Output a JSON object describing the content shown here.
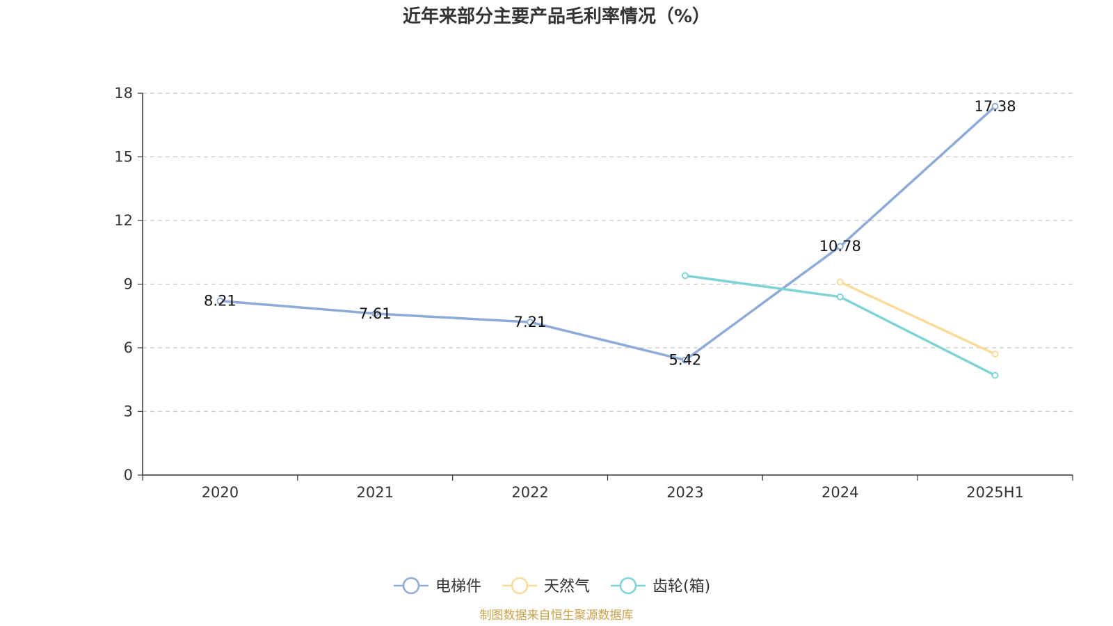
{
  "chart_data": {
    "type": "line",
    "title": "近年来部分主要产品毛利率情况（%）",
    "categories": [
      "2020",
      "2021",
      "2022",
      "2023",
      "2024",
      "2025H1"
    ],
    "ylim": [
      0,
      18
    ],
    "yticks": [
      0,
      3,
      6,
      9,
      12,
      15,
      18
    ],
    "grid": true,
    "legend_position": "bottom-center",
    "series": [
      {
        "name": "电梯件",
        "color": "#8eaad6",
        "values": [
          8.21,
          7.61,
          7.21,
          5.42,
          10.78,
          17.38
        ],
        "labels": [
          "8.21",
          "7.61",
          "7.21",
          "5.42",
          "10.78",
          "17.38"
        ]
      },
      {
        "name": "天然气",
        "color": "#fadb99",
        "values": [
          null,
          null,
          null,
          null,
          9.1,
          5.7
        ],
        "labels": [
          null,
          null,
          null,
          null,
          null,
          null
        ]
      },
      {
        "name": "齿轮(箱)",
        "color": "#7fd3d4",
        "values": [
          null,
          null,
          null,
          9.4,
          8.4,
          4.7
        ],
        "labels": [
          null,
          null,
          null,
          null,
          null,
          null
        ]
      }
    ]
  },
  "source_text": "制图数据来自恒生聚源数据库",
  "source_color": "#c9a14a"
}
